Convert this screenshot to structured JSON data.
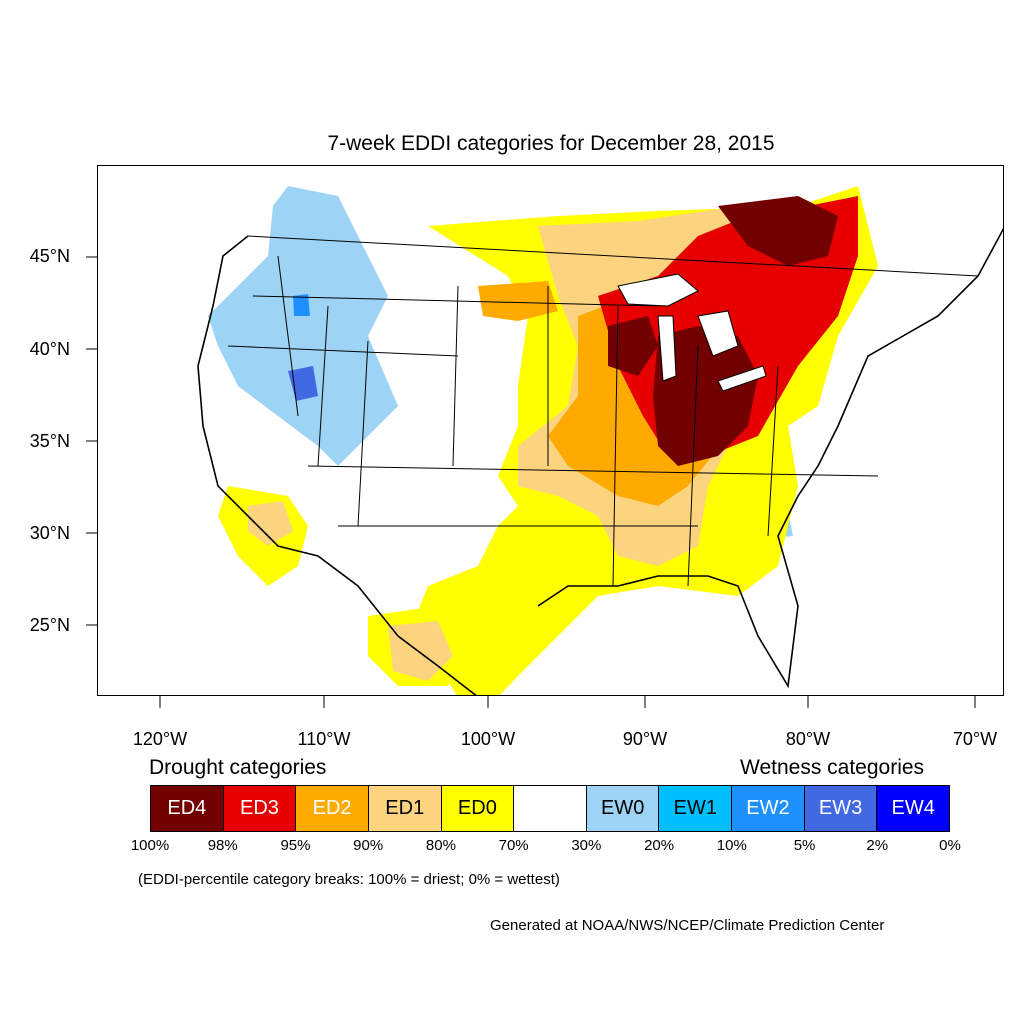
{
  "map": {
    "title": "7-week EDDI categories for December 28, 2015",
    "lat_labels": [
      "45°N",
      "40°N",
      "35°N",
      "30°N",
      "25°N"
    ],
    "lon_labels": [
      "120°W",
      "110°W",
      "100°W",
      "90°W",
      "80°W",
      "70°W"
    ]
  },
  "legend": {
    "drought_heading": "Drought categories",
    "wetness_heading": "Wetness categories",
    "categories": [
      {
        "label": "ED4",
        "color": "#730000",
        "text_color": "#ffffff"
      },
      {
        "label": "ED3",
        "color": "#e60000",
        "text_color": "#ffffff"
      },
      {
        "label": "ED2",
        "color": "#ffaa00",
        "text_color": "#ffffff"
      },
      {
        "label": "ED1",
        "color": "#fcd37f",
        "text_color": "#000000"
      },
      {
        "label": "ED0",
        "color": "#ffff00",
        "text_color": "#000000"
      },
      {
        "label": "",
        "color": "#ffffff",
        "text_color": "#000000"
      },
      {
        "label": "EW0",
        "color": "#9dd3f5",
        "text_color": "#000000"
      },
      {
        "label": "EW1",
        "color": "#00bfff",
        "text_color": "#000000"
      },
      {
        "label": "EW2",
        "color": "#1e90ff",
        "text_color": "#ffffff"
      },
      {
        "label": "EW3",
        "color": "#4169e1",
        "text_color": "#ffffff"
      },
      {
        "label": "EW4",
        "color": "#0000ff",
        "text_color": "#ffffff"
      }
    ],
    "breaks": [
      "100%",
      "98%",
      "95%",
      "90%",
      "80%",
      "70%",
      "30%",
      "20%",
      "10%",
      "5%",
      "2%",
      "0%"
    ],
    "note": "(EDDI-percentile category breaks: 100% = driest; 0% = wettest)"
  },
  "credit": "Generated at NOAA/NWS/NCEP/Climate Prediction Center"
}
